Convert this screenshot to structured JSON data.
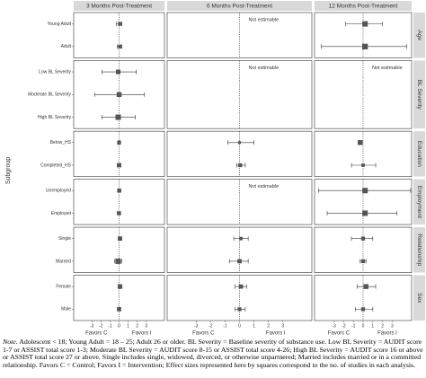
{
  "chart_data": {
    "type": "forest",
    "columns": [
      "3 Months Post-Treatment",
      "6 Months Post-Treatment",
      "12 Months Post-Treatment"
    ],
    "y_label": "Subgroup",
    "xlim": [
      -5,
      5
    ],
    "xticks": [
      -3,
      -2,
      -1,
      0,
      1,
      2,
      3
    ],
    "favors_left": "Favors C",
    "favors_right": "Favors I",
    "facets": [
      {
        "name": "Age",
        "subgroups": [
          "Young Adult",
          "Adult"
        ],
        "panels": [
          {
            "estimates": [
              0.1,
              0.1
            ],
            "lower": [
              -0.3,
              -0.2
            ],
            "upper": [
              0.3,
              0.3
            ],
            "studies": [
              3,
              3
            ]
          },
          {
            "label": "Not estimable"
          },
          {
            "estimates": [
              0.2,
              0.2
            ],
            "lower": [
              -1.8,
              -4.3
            ],
            "upper": [
              2.0,
              4.5
            ],
            "studies": [
              8,
              9
            ]
          }
        ]
      },
      {
        "name": "BL Severity",
        "subgroups": [
          "Low BL Severity",
          "Moderate BL Severity",
          "High BL Severity"
        ],
        "panels": [
          {
            "estimates": [
              -0.1,
              0,
              -0.1
            ],
            "lower": [
              -1.9,
              -2.7,
              -1.9
            ],
            "upper": [
              1.9,
              2.8,
              1.8
            ],
            "studies": [
              5,
              6,
              8
            ]
          },
          {
            "label": "Not estimable"
          },
          {
            "label": "Not estimable"
          }
        ]
      },
      {
        "name": "Education",
        "subgroups": [
          "Below_HS",
          "Completed_HS"
        ],
        "panels": [
          {
            "estimates": [
              0,
              0
            ],
            "lower": [
              -0.1,
              -0.2
            ],
            "upper": [
              0.1,
              0.2
            ],
            "studies": [
              3,
              4
            ]
          },
          {
            "estimates": [
              0,
              0.05
            ],
            "lower": [
              -0.8,
              -0.2
            ],
            "upper": [
              1.0,
              0.4
            ],
            "studies": [
              1,
              3
            ]
          },
          {
            "estimates": [
              -0.3,
              0
            ],
            "lower": [
              -0.5,
              -1.2
            ],
            "upper": [
              -0.1,
              1.3
            ],
            "studies": [
              6,
              2
            ]
          }
        ]
      },
      {
        "name": "Employment",
        "subgroups": [
          "Unemployed",
          "Employed"
        ],
        "panels": [
          {
            "estimates": [
              0,
              0
            ],
            "lower": [
              -0.1,
              -0.2
            ],
            "upper": [
              0.2,
              0.1
            ],
            "studies": [
              3,
              3
            ]
          },
          {
            "label": "Not estimable"
          },
          {
            "estimates": [
              0.2,
              0.2
            ],
            "lower": [
              -4.6,
              -3.7
            ],
            "upper": [
              4.9,
              3.5
            ],
            "studies": [
              8,
              8
            ]
          }
        ]
      },
      {
        "name": "Relationship",
        "subgroups": [
          "Single",
          "Married"
        ],
        "panels": [
          {
            "estimates": [
              0.1,
              -0.1
            ],
            "lower": [
              -0.1,
              -0.5
            ],
            "upper": [
              0.3,
              0.3
            ],
            "studies": [
              4,
              8
            ]
          },
          {
            "estimates": [
              0.1,
              0
            ],
            "lower": [
              -0.4,
              -0.7
            ],
            "upper": [
              0.6,
              0.6
            ],
            "studies": [
              2,
              4
            ]
          },
          {
            "estimates": [
              0,
              0
            ],
            "lower": [
              -1.2,
              -0.3
            ],
            "upper": [
              1.0,
              0.3
            ],
            "studies": [
              3,
              3
            ]
          }
        ]
      },
      {
        "name": "Sex",
        "subgroups": [
          "Female",
          "Male"
        ],
        "panels": [
          {
            "estimates": [
              0.1,
              0
            ],
            "lower": [
              -0.1,
              -0.1
            ],
            "upper": [
              0.2,
              0.1
            ],
            "studies": [
              5,
              4
            ]
          },
          {
            "estimates": [
              0.1,
              0
            ],
            "lower": [
              -0.3,
              -0.3
            ],
            "upper": [
              0.5,
              0.4
            ],
            "studies": [
              4,
              3
            ]
          },
          {
            "estimates": [
              0.3,
              0
            ],
            "lower": [
              -0.6,
              -0.8
            ],
            "upper": [
              1.3,
              1.0
            ],
            "studies": [
              6,
              3
            ]
          }
        ]
      }
    ],
    "note_label": "Note.",
    "note": "Adolescent < 18; Young Adult = 18 – 25; Adult 26 or older. BL Severity = Baseline severity of substance use. Low BL Severity = AUDIT score 1-7 or ASSIST total score 1-3; Moderate BL Severity = AUDIT score 8-15 or ASSIST total score 4-26; High BL Severity = AUDIT score 16 or above or ASSIST total score 27 or above. Single includes single, widowed, divorced, or otherwise unpartnered; Married includes married or in a committed relationship. Favors C = Control; Favors I = Intervention; Effect sizes represented here by squares correspond to the no. of studies in each analysis."
  }
}
